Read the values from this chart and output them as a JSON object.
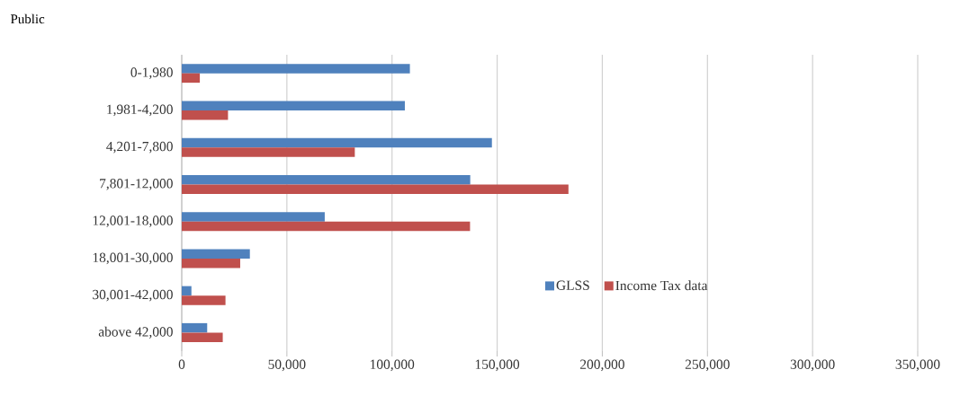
{
  "chart_data": {
    "type": "bar",
    "orientation": "horizontal",
    "title": "Public",
    "categories": [
      "0-1,980",
      "1,981-4,200",
      "4,201-7,800",
      "7,801-12,000",
      "12,001-18,000",
      "18,001-30,000",
      "30,001-42,000",
      "above 42,000"
    ],
    "series": [
      {
        "name": "GLSS",
        "color": "#4f81bd",
        "values": [
          108500,
          106100,
          147500,
          137200,
          68000,
          32400,
          4600,
          12100
        ]
      },
      {
        "name": "Income Tax data",
        "color": "#c0504d",
        "values": [
          8600,
          22000,
          82300,
          183900,
          137100,
          27800,
          20800,
          19500
        ]
      }
    ],
    "xlim": [
      0,
      350000
    ],
    "xticks": [
      0,
      {
        "value": 50000,
        "label": "50,000"
      },
      {
        "value": 100000,
        "label": "100,000"
      },
      {
        "value": 150000,
        "label": "150,000"
      },
      {
        "value": 200000,
        "label": "200,000"
      },
      {
        "value": 250000,
        "label": "250,000"
      },
      {
        "value": 300000,
        "label": "300,000"
      },
      {
        "value": 350000,
        "label": "350,000"
      }
    ],
    "grid": "x",
    "legend": "right"
  }
}
